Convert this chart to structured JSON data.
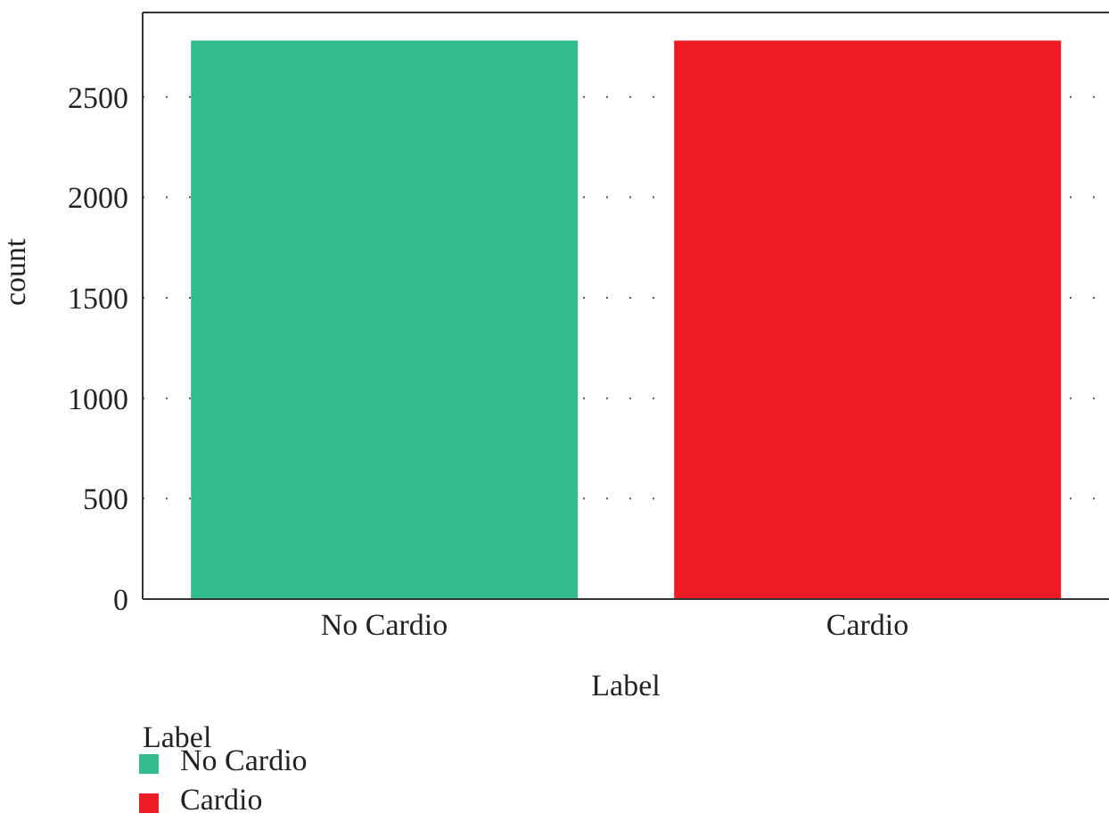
{
  "chart_data": {
    "type": "bar",
    "xlabel": "Label",
    "ylabel": "count",
    "legend_title": "Label",
    "categories": [
      "No Cardio",
      "Cardio"
    ],
    "series": [
      {
        "name": "No Cardio",
        "color": "#32bc8e",
        "values": [
          2780,
          null
        ]
      },
      {
        "name": "Cardio",
        "color": "#ed1c24",
        "values": [
          null,
          2780
        ]
      }
    ],
    "stacked": true,
    "ylim": [
      0,
      2920
    ],
    "yticks": [
      0,
      500,
      1000,
      1500,
      2000,
      2500
    ],
    "grid": "y",
    "legend": "bottom left"
  }
}
